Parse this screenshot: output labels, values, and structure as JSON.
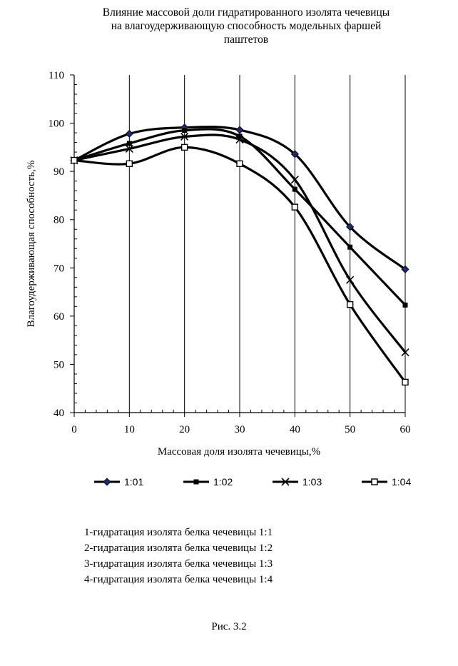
{
  "chart_data": {
    "type": "line",
    "title_lines": [
      "Влияние массовой доли гидратированного изолята чечевицы",
      "на влагоудерживающую способность модельных фаршей",
      "паштетов"
    ],
    "xlabel": "Массовая доля изолята чечевицы,%",
    "ylabel": "Влагоудерживающая способность,%",
    "xlim": [
      0,
      60
    ],
    "ylim": [
      40,
      110
    ],
    "x_ticks": [
      "0",
      "10",
      "20",
      "30",
      "40",
      "50",
      "60"
    ],
    "y_ticks": [
      "40",
      "50",
      "60",
      "70",
      "80",
      "90",
      "100",
      "110"
    ],
    "x": [
      0,
      10,
      20,
      30,
      40,
      50,
      60
    ],
    "grid": "vertical",
    "legend_position": "bottom",
    "series": [
      {
        "name": "1:01",
        "marker": "diamond",
        "values": [
          92.3,
          97.8,
          99.1,
          98.6,
          93.6,
          78.5,
          69.7
        ]
      },
      {
        "name": "1:02",
        "marker": "filled-square",
        "values": [
          92.3,
          95.8,
          98.5,
          97.3,
          86.3,
          74.3,
          62.3
        ]
      },
      {
        "name": "1:03",
        "marker": "x",
        "values": [
          92.3,
          94.7,
          97.2,
          96.6,
          88.3,
          67.5,
          52.5
        ]
      },
      {
        "name": "1:04",
        "marker": "open-square",
        "values": [
          92.3,
          91.6,
          95.0,
          91.6,
          82.6,
          62.4,
          46.3
        ]
      }
    ]
  },
  "notes": [
    "1-гидратация изолята белка чечевицы 1:1",
    "2-гидратация изолята белка чечевицы 1:2",
    "3-гидратация изолята белка чечевицы 1:3",
    "4-гидратация изолята белка чечевицы 1:4"
  ],
  "caption": "Рис. 3.2",
  "colors": {
    "line": "#000000",
    "diamond_marker": "#1f2a6b"
  }
}
